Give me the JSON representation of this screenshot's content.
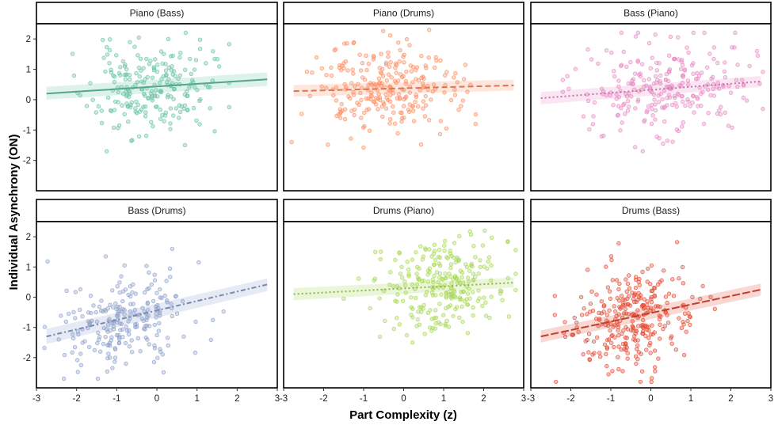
{
  "chart_data": {
    "type": "scatter",
    "xlabel": "Part Complexity (z)",
    "ylabel": "Individual Asynchrony (ON)",
    "xlim": [
      -3,
      3
    ],
    "ylim": [
      -3,
      2.5
    ],
    "xticks": [
      -3,
      -2,
      -1,
      0,
      1,
      2,
      3
    ],
    "yticks": [
      -2,
      -1,
      0,
      1,
      2
    ],
    "grid": false,
    "legend": "none",
    "panels": [
      {
        "title": "Piano (Bass)",
        "color": "#66c2a5",
        "linestyle": "solid",
        "fit": {
          "x": [
            -2.75,
            2.75
          ],
          "y": [
            0.2,
            0.67
          ]
        },
        "ci": {
          "lower": [
            0.0,
            0.45
          ],
          "upper": [
            0.42,
            0.9
          ]
        },
        "scatter": {
          "n": 230,
          "x_mean": -0.2,
          "x_sd": 0.75,
          "y_mean": 0.35,
          "y_sd": 0.75,
          "seed": 11,
          "x_range": [
            -2.1,
            1.8
          ],
          "y_range": [
            -1.7,
            2.2
          ]
        }
      },
      {
        "title": "Piano (Drums)",
        "color": "#fc8d62",
        "linestyle": "dashed",
        "fit": {
          "x": [
            -2.75,
            2.75
          ],
          "y": [
            0.28,
            0.47
          ]
        },
        "ci": {
          "lower": [
            0.1,
            0.3
          ],
          "upper": [
            0.48,
            0.66
          ]
        },
        "scatter": {
          "n": 260,
          "x_mean": -0.5,
          "x_sd": 0.9,
          "y_mean": 0.35,
          "y_sd": 0.75,
          "seed": 23,
          "x_range": [
            -2.8,
            1.8
          ],
          "y_range": [
            -1.6,
            2.3
          ]
        }
      },
      {
        "title": "Bass (Piano)",
        "color": "#e78ac3",
        "linestyle": "dotted",
        "fit": {
          "x": [
            -2.75,
            2.75
          ],
          "y": [
            0.05,
            0.6
          ]
        },
        "ci": {
          "lower": [
            -0.15,
            0.42
          ],
          "upper": [
            0.25,
            0.78
          ]
        },
        "scatter": {
          "n": 260,
          "x_mean": 0.5,
          "x_sd": 1.05,
          "y_mean": 0.4,
          "y_sd": 0.75,
          "seed": 37,
          "x_range": [
            -2.2,
            2.8
          ],
          "y_range": [
            -1.7,
            2.2
          ]
        }
      },
      {
        "title": "Bass (Drums)",
        "color": "#8da0cb",
        "linestyle": "dashdot",
        "fit": {
          "x": [
            -2.75,
            2.75
          ],
          "y": [
            -1.3,
            0.42
          ]
        },
        "ci": {
          "lower": [
            -1.55,
            0.2
          ],
          "upper": [
            -1.05,
            0.62
          ]
        },
        "scatter": {
          "n": 230,
          "x_mean": -0.8,
          "x_sd": 0.75,
          "y_mean": -0.7,
          "y_sd": 0.85,
          "seed": 41,
          "x_range": [
            -2.8,
            1.7
          ],
          "y_range": [
            -2.7,
            2.1
          ]
        }
      },
      {
        "title": "Drums (Piano)",
        "color": "#a6d854",
        "linestyle": "dotted",
        "fit": {
          "x": [
            -2.75,
            2.75
          ],
          "y": [
            0.1,
            0.48
          ]
        },
        "ci": {
          "lower": [
            -0.1,
            0.32
          ],
          "upper": [
            0.3,
            0.65
          ]
        },
        "scatter": {
          "n": 260,
          "x_mean": 0.9,
          "x_sd": 0.75,
          "y_mean": 0.4,
          "y_sd": 0.75,
          "seed": 53,
          "x_range": [
            -1.5,
            2.8
          ],
          "y_range": [
            -1.5,
            2.2
          ]
        }
      },
      {
        "title": "Drums (Bass)",
        "color": "#e34a33",
        "linestyle": "longdash",
        "fit": {
          "x": [
            -2.75,
            2.75
          ],
          "y": [
            -1.3,
            0.25
          ]
        },
        "ci": {
          "lower": [
            -1.5,
            0.05
          ],
          "upper": [
            -1.1,
            0.45
          ]
        },
        "scatter": {
          "n": 300,
          "x_mean": -0.5,
          "x_sd": 0.75,
          "y_mean": -0.7,
          "y_sd": 0.8,
          "seed": 67,
          "x_range": [
            -2.4,
            1.6
          ],
          "y_range": [
            -2.8,
            2.1
          ]
        }
      }
    ]
  }
}
